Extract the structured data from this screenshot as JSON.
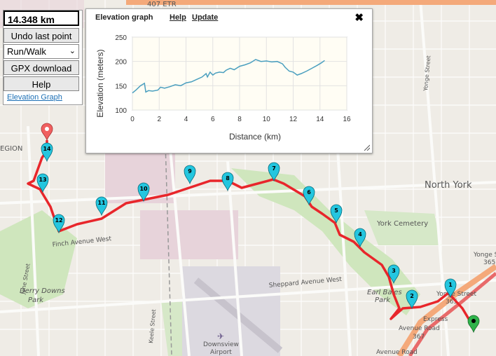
{
  "distance": "14.348 km",
  "controls": {
    "undo_label": "Undo last point",
    "mode_value": "Run/Walk",
    "gpx_label": "GPX download",
    "help_label": "Help",
    "elevation_link": "Elevation Graph"
  },
  "elevation_panel": {
    "title": "Elevation graph",
    "help": "Help",
    "update": "Update",
    "close_icon": "close-icon",
    "resize_icon": "resize-handle-icon"
  },
  "chart_data": {
    "type": "line",
    "xlabel": "Distance (km)",
    "ylabel": "Elevation (meters)",
    "xlim": [
      0,
      16
    ],
    "ylim": [
      100,
      250
    ],
    "xticks": [
      0,
      2,
      4,
      6,
      8,
      10,
      12,
      14,
      16
    ],
    "yticks": [
      100,
      150,
      200,
      250
    ],
    "grid": true,
    "series": [
      {
        "color": "#4a9fbf",
        "x": [
          0,
          0.3,
          0.6,
          0.9,
          1.0,
          1.2,
          1.5,
          1.9,
          2.1,
          2.4,
          2.8,
          3.2,
          3.6,
          4.0,
          4.4,
          4.8,
          5.2,
          5.5,
          5.6,
          5.8,
          6.0,
          6.2,
          6.5,
          6.8,
          7.0,
          7.3,
          7.6,
          8.0,
          8.4,
          8.8,
          9.2,
          9.6,
          10.0,
          10.4,
          10.8,
          11.2,
          11.4,
          11.7,
          12.0,
          12.3,
          12.6,
          13.0,
          13.4,
          13.8,
          14.1,
          14.35
        ],
        "y": [
          135,
          142,
          150,
          155,
          137,
          140,
          139,
          141,
          147,
          145,
          148,
          152,
          150,
          156,
          158,
          163,
          168,
          175,
          168,
          178,
          172,
          176,
          178,
          177,
          182,
          186,
          183,
          190,
          193,
          197,
          204,
          200,
          201,
          199,
          200,
          195,
          188,
          180,
          178,
          172,
          175,
          180,
          186,
          192,
          197,
          202
        ]
      }
    ]
  },
  "map": {
    "labels": {
      "highway": "407 ETR",
      "north_york": "North York",
      "york_cemetery": "York Cemetery",
      "finch": "Finch Avenue West",
      "sheppard": "Sheppard Avenue West",
      "earl_bales": "Earl Bales",
      "earl_bales2": "Park",
      "derry_downs": "Derry Downs",
      "derry_downs2": "Park",
      "jane": "Jane Street",
      "keele": "Keele Street",
      "yonge_vert": "Yonge Street",
      "yonge_exp": "Yonge Street",
      "yonge_exp_num": "365",
      "yonge_right": "Yonge S",
      "yonge_right2": "365",
      "avenue_road": "Avenue Road",
      "avenue_road_num": "367",
      "avenue_road2": "Avenue Road",
      "express": "Express",
      "downsview": "Downsview",
      "downsview2": "Airport",
      "region": "EGION"
    },
    "waypoints": [
      "1",
      "2",
      "3",
      "4",
      "5",
      "6",
      "7",
      "8",
      "9",
      "10",
      "11",
      "12",
      "13",
      "14"
    ],
    "start_marker_icon": "start-pin-icon",
    "end_marker_icon": "end-pin-icon"
  }
}
